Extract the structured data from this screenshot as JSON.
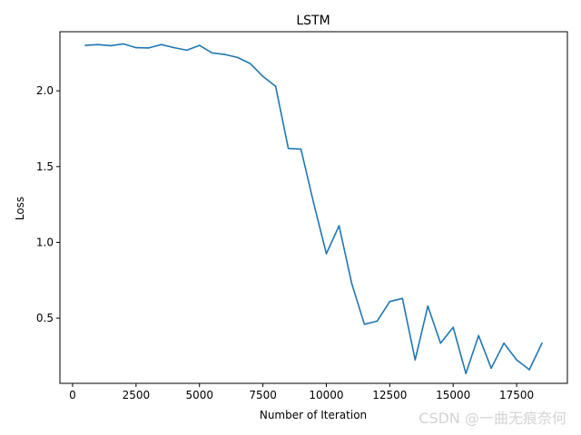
{
  "chart_data": {
    "type": "line",
    "title": "LSTM",
    "xlabel": "Number of Iteration",
    "ylabel": "Loss",
    "xlim": [
      -500,
      19500
    ],
    "ylim": [
      0.07,
      2.39
    ],
    "grid": false,
    "xticks": [
      0,
      2500,
      5000,
      7500,
      10000,
      12500,
      15000,
      17500
    ],
    "yticks": [
      0.5,
      1.0,
      1.5,
      2.0
    ],
    "line_color": "#1f77b4",
    "series": [
      {
        "x": [
          500,
          1000,
          1500,
          2000,
          2500,
          3000,
          3500,
          4000,
          4500,
          5000,
          5500,
          6000,
          6500,
          7000,
          7500,
          8000,
          8500,
          9000,
          9500,
          10000,
          10500,
          11000,
          11500,
          12000,
          12500,
          13000,
          13500,
          14000,
          14500,
          15000,
          15500,
          16000,
          16500,
          17000,
          17500,
          18000,
          18500
        ],
        "values": [
          2.3,
          2.305,
          2.298,
          2.31,
          2.285,
          2.283,
          2.305,
          2.285,
          2.268,
          2.3,
          2.25,
          2.24,
          2.22,
          2.18,
          2.095,
          2.03,
          1.62,
          1.615,
          1.26,
          0.925,
          1.11,
          0.73,
          0.46,
          0.48,
          0.61,
          0.63,
          0.225,
          0.58,
          0.335,
          0.44,
          0.135,
          0.385,
          0.17,
          0.335,
          0.225,
          0.16,
          0.335
        ]
      }
    ]
  },
  "watermark": "CSDN @一曲无痕奈何"
}
